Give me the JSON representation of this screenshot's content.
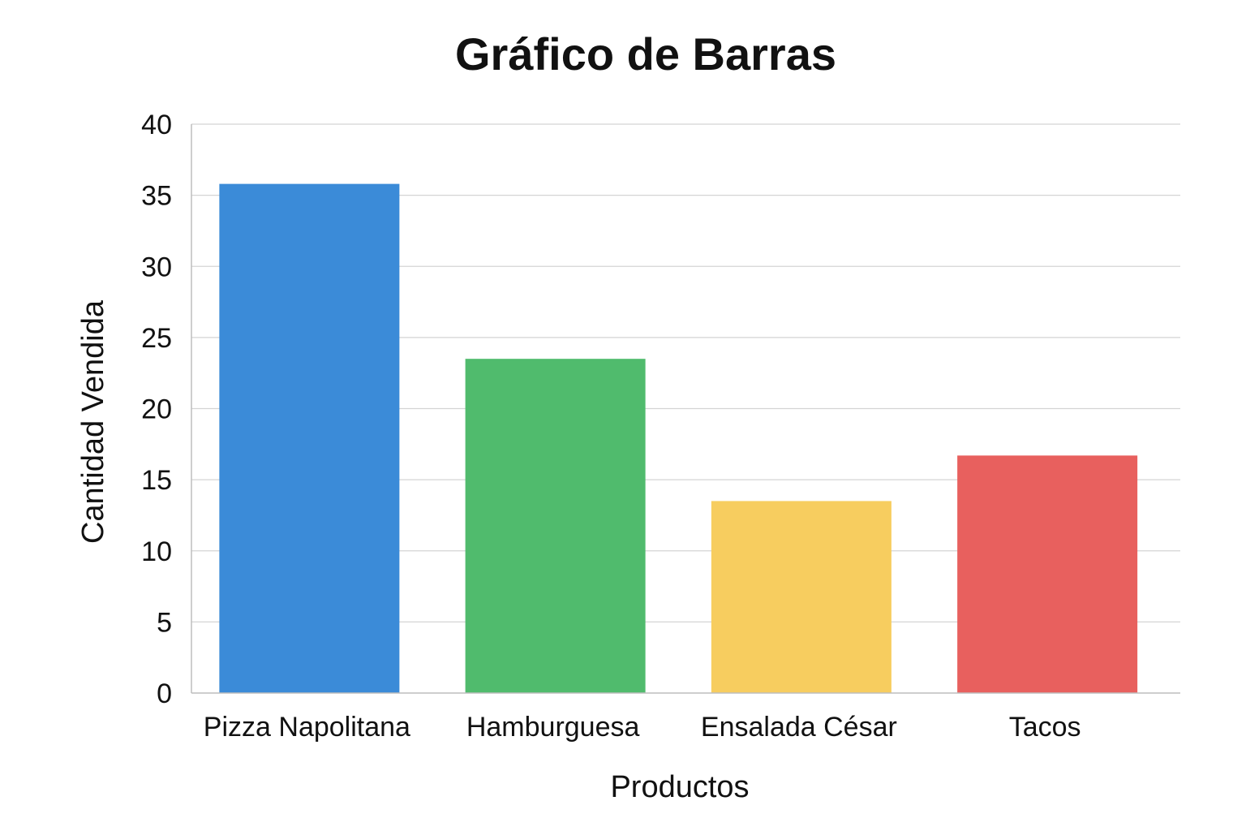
{
  "chart_data": {
    "type": "bar",
    "title": "Gráfico de Barras",
    "xlabel": "Productos",
    "ylabel": "Cantidad Vendida",
    "categories": [
      "Pizza Napolitana",
      "Hamburguesa",
      "Ensalada César",
      "Tacos"
    ],
    "values": [
      35.8,
      23.5,
      13.5,
      16.7
    ],
    "colors": [
      "#3b8bd8",
      "#50bb6d",
      "#f7cd5f",
      "#e8605e"
    ],
    "ylim": [
      0,
      40
    ],
    "yticks": [
      0,
      5,
      10,
      15,
      20,
      25,
      30,
      35,
      40
    ],
    "grid": true,
    "legend": "none"
  }
}
